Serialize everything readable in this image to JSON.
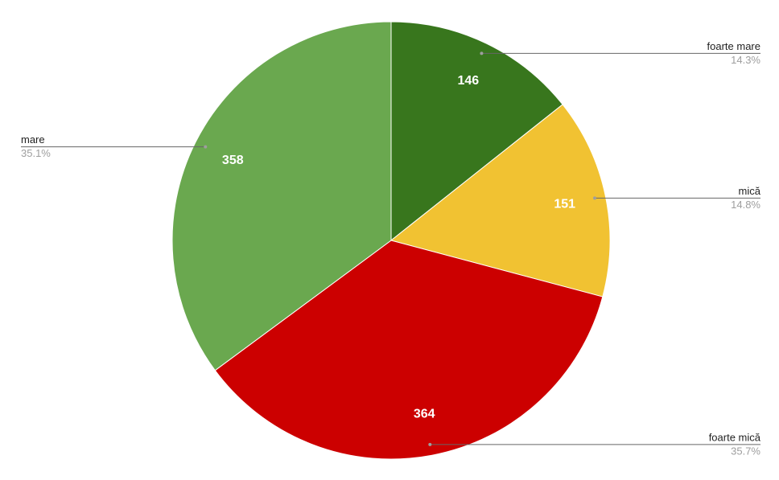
{
  "chart_data": {
    "type": "pie",
    "categories": [
      "foarte mare",
      "mică",
      "foarte mică",
      "mare"
    ],
    "values": [
      146,
      151,
      364,
      358
    ],
    "percentages": [
      14.3,
      14.8,
      35.7,
      35.1
    ],
    "percentage_labels": [
      "14.3%",
      "14.8%",
      "35.7%",
      "35.1%"
    ],
    "colors": [
      "#38761d",
      "#f1c232",
      "#cc0000",
      "#6aa84f"
    ]
  }
}
